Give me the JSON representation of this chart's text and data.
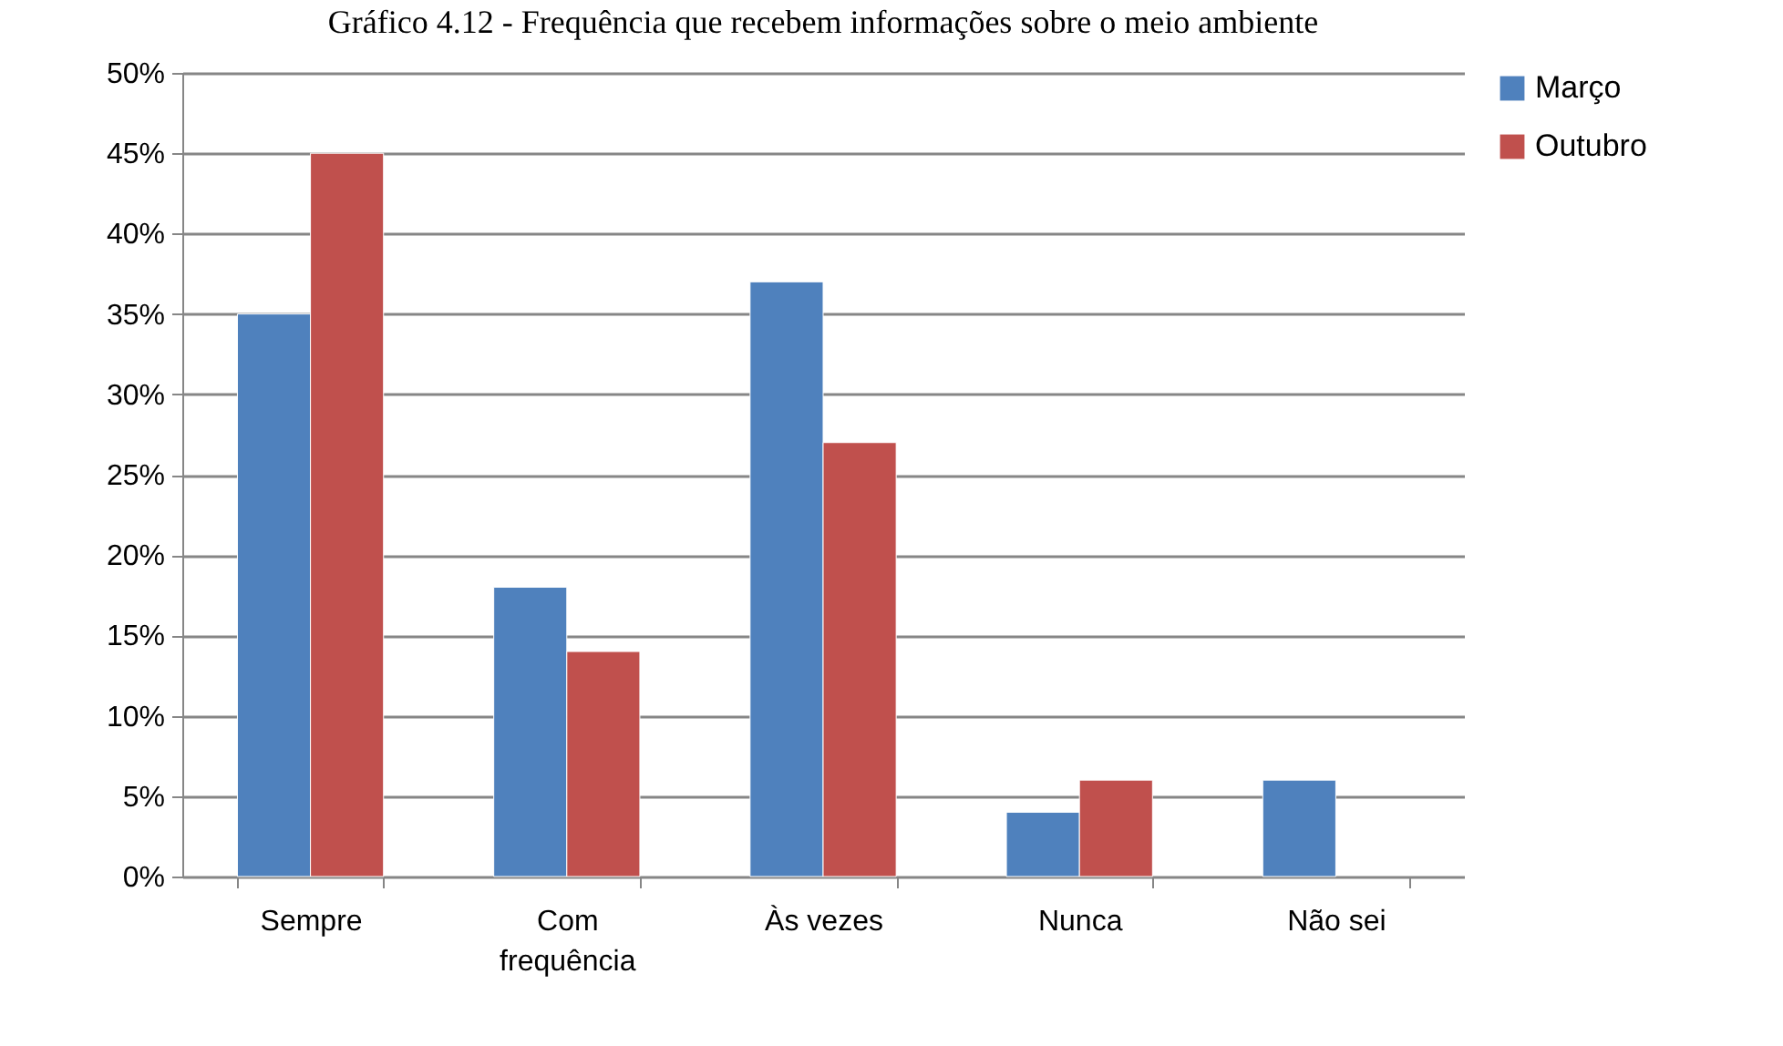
{
  "chart_data": {
    "type": "bar",
    "title": "Gráfico 4.12 - Frequência que recebem informações sobre o meio ambiente",
    "categories": [
      "Sempre",
      "Com frequência",
      "Às vezes",
      "Nunca",
      "Não sei"
    ],
    "series": [
      {
        "name": "Março",
        "color": "#4f81bd",
        "values": [
          35,
          18,
          37,
          4,
          6
        ]
      },
      {
        "name": "Outubro",
        "color": "#c0504d",
        "values": [
          45,
          14,
          27,
          6,
          null
        ]
      }
    ],
    "ylim": [
      0,
      50
    ],
    "yticks": [
      {
        "value": 0,
        "label": "0%"
      },
      {
        "value": 5,
        "label": "5%"
      },
      {
        "value": 10,
        "label": "10%"
      },
      {
        "value": 15,
        "label": "15%"
      },
      {
        "value": 20,
        "label": "20%"
      },
      {
        "value": 25,
        "label": "25%"
      },
      {
        "value": 30,
        "label": "30%"
      },
      {
        "value": 35,
        "label": "35%"
      },
      {
        "value": 40,
        "label": "40%"
      },
      {
        "value": 45,
        "label": "45%"
      },
      {
        "value": 50,
        "label": "50%"
      }
    ],
    "grid": "y",
    "legend": "right"
  }
}
